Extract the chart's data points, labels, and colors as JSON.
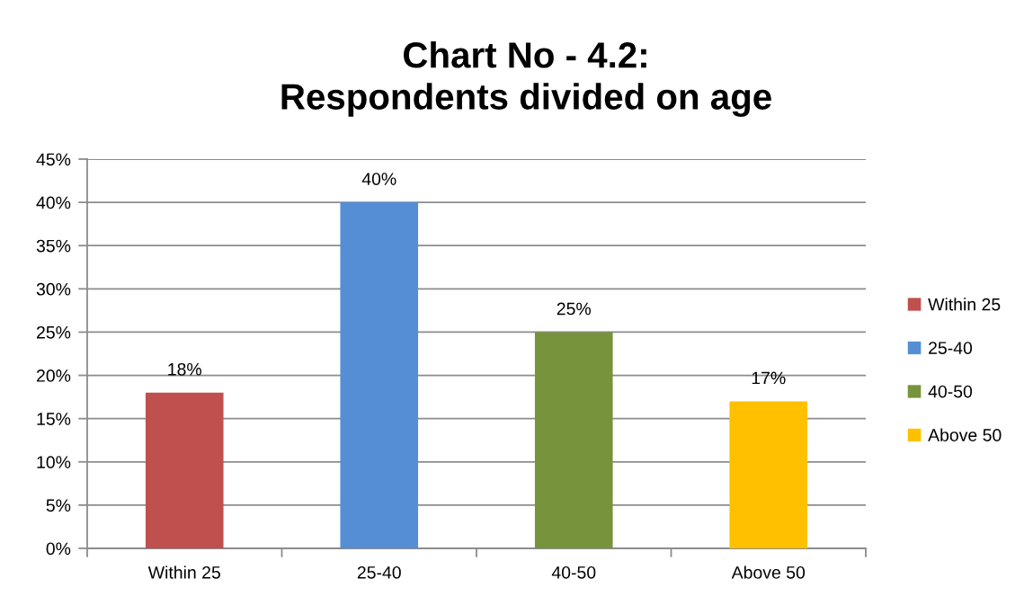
{
  "chart_data": {
    "type": "bar",
    "title": "Chart No - 4.2:\nRespondents divided on age",
    "categories": [
      "Within 25",
      "25-40",
      "40-50",
      "Above 50"
    ],
    "series": [
      {
        "name": "Within 25",
        "color": "#c0504d",
        "values": [
          18,
          null,
          null,
          null
        ],
        "value_labels": [
          "18%",
          null,
          null,
          null
        ]
      },
      {
        "name": "25-40",
        "color": "#558ed5",
        "values": [
          null,
          40,
          null,
          null
        ],
        "value_labels": [
          null,
          "40%",
          null,
          null
        ]
      },
      {
        "name": "40-50",
        "color": "#77933c",
        "values": [
          null,
          null,
          25,
          null
        ],
        "value_labels": [
          null,
          null,
          "25%",
          null
        ]
      },
      {
        "name": "Above 50",
        "color": "#ffc000",
        "values": [
          null,
          null,
          null,
          17
        ],
        "value_labels": [
          null,
          null,
          null,
          "17%"
        ]
      }
    ],
    "ylim": [
      0,
      45
    ],
    "yticks": [
      {
        "value": 0,
        "label": "0%"
      },
      {
        "value": 5,
        "label": "5%"
      },
      {
        "value": 10,
        "label": "10%"
      },
      {
        "value": 15,
        "label": "15%"
      },
      {
        "value": 20,
        "label": "20%"
      },
      {
        "value": 25,
        "label": "25%"
      },
      {
        "value": 30,
        "label": "30%"
      },
      {
        "value": 35,
        "label": "35%"
      },
      {
        "value": 40,
        "label": "40%"
      },
      {
        "value": 45,
        "label": "45%"
      }
    ],
    "grid": "y",
    "legend": "right"
  }
}
